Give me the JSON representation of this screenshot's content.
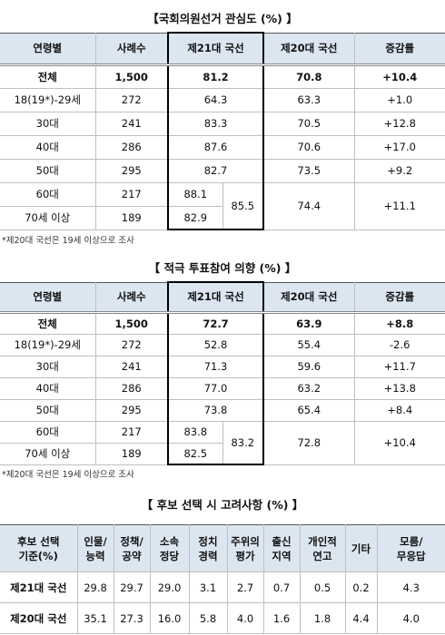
{
  "tables": [
    {
      "title": "【국회의원선거 관심도 (%) 】",
      "headers": [
        "연령별",
        "사례수",
        "제21대 국선",
        "제20대 국선",
        "증감률"
      ],
      "rows": [
        [
          "전체",
          "1,500",
          "81.2",
          "70.8",
          "+10.4"
        ],
        [
          "18(19*)-29세",
          "272",
          "64.3",
          "63.3",
          "+1.0"
        ],
        [
          "30대",
          "241",
          "83.3",
          "70.5",
          "+12.8"
        ],
        [
          "40대",
          "286",
          "87.6",
          "70.6",
          "+17.0"
        ],
        [
          "50대",
          "295",
          "82.7",
          "73.5",
          "+9.2"
        ],
        [
          "60대",
          "217",
          "88.1",
          "85.5",
          "74.4",
          "+11.1"
        ],
        [
          "70세 이상",
          "189",
          "82.9"
        ]
      ],
      "note": "*제20대 국선은 19세 이상으로 조사"
    },
    {
      "title": "【 적극 투표참여 의향 (%) 】",
      "headers": [
        "연령별",
        "사례수",
        "제21대 국선",
        "제20대 국선",
        "증감률"
      ],
      "rows": [
        [
          "전체",
          "1,500",
          "72.7",
          "63.9",
          "+8.8"
        ],
        [
          "18(19*)-29세",
          "272",
          "52.8",
          "55.4",
          "-2.6"
        ],
        [
          "30대",
          "241",
          "71.3",
          "59.6",
          "+11.7"
        ],
        [
          "40대",
          "286",
          "77.0",
          "63.2",
          "+13.8"
        ],
        [
          "50대",
          "295",
          "73.8",
          "65.4",
          "+8.4"
        ],
        [
          "60대",
          "217",
          "83.8",
          "83.2",
          "72.8",
          "+10.4"
        ],
        [
          "70세 이상",
          "189",
          "82.5"
        ]
      ],
      "note": "*제20대 국선은 19세 이상으로 조사"
    },
    {
      "title": "【 후보 선택 시 고려사항 (%) 】",
      "headers": [
        "후보 선택\n기준(%)",
        "인물/\n능력",
        "정책/\n공약",
        "소속\n정당",
        "정치\n경력",
        "주위의\n평가",
        "출신\n지역",
        "개인적\n연고",
        "기타",
        "모름/\n무응답"
      ],
      "rows": [
        [
          "제21대 국선",
          "29.8",
          "29.7",
          "29.0",
          "3.1",
          "2.7",
          "0.7",
          "0.5",
          "0.2",
          "4.3"
        ],
        [
          "제20대 국선",
          "35.1",
          "27.3",
          "16.0",
          "5.8",
          "4.0",
          "1.6",
          "1.8",
          "4.4",
          "4.0"
        ]
      ]
    }
  ]
}
